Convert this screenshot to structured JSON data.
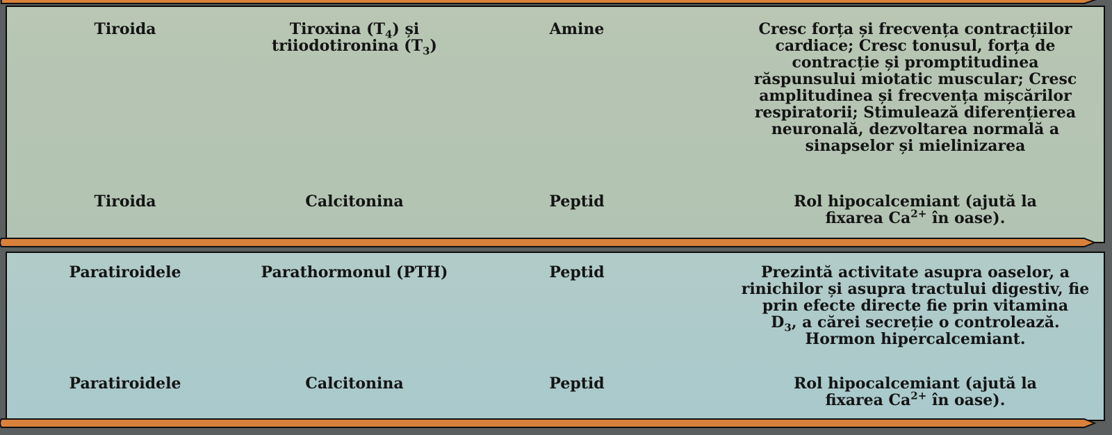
{
  "sections": [
    {
      "rows": [
        {
          "gland": "Tiroida",
          "hormone": {
            "parts": [
              "Tiroxina (T",
              "4",
              ") și",
              "triiodotironina (T",
              "3",
              ")"
            ]
          },
          "class": "Amine",
          "effect": {
            "text": "Cresc forța și frecvența contracțiilor cardiace; Cresc tonusul, forța de contracție și promptitudinea răspunsului miotatic muscular; Cresc amplitudinea și frecvența mișcărilor respiratorii;  Stimulează diferențierea neuronală, dezvoltarea normală a sinapselor și mielinizarea"
          }
        },
        {
          "gland": "Tiroida",
          "hormone": {
            "text": "Calcitonina"
          },
          "class": "Peptid",
          "effect": {
            "parts": [
              "Rol hipocalcemiant (ajută la",
              "fixarea Ca",
              "2+",
              " în oase)."
            ]
          }
        }
      ]
    },
    {
      "rows": [
        {
          "gland": "Paratiroidele",
          "hormone": {
            "text": "Parathormonul (PTH)"
          },
          "class": "Peptid",
          "effect": {
            "parts": [
              "Prezintă activitate asupra oaselor, a rinichilor și asupra tractului digestiv, fie prin efecte directe fie prin vitamina",
              "D",
              "3",
              ", a cărei secreție o controlează.",
              "Hormon hipercalcemiant."
            ]
          }
        },
        {
          "gland": "Paratiroidele",
          "hormone": {
            "text": "Calcitonina"
          },
          "class": "Peptid",
          "effect": {
            "parts": [
              "Rol hipocalcemiant (ajută la",
              "fixarea Ca",
              "2+",
              " în oase)."
            ]
          }
        }
      ]
    }
  ],
  "colors": {
    "arrow_fill": "#d9813a",
    "panel_1": "#b5c5b2",
    "panel_2": "#accacb"
  }
}
